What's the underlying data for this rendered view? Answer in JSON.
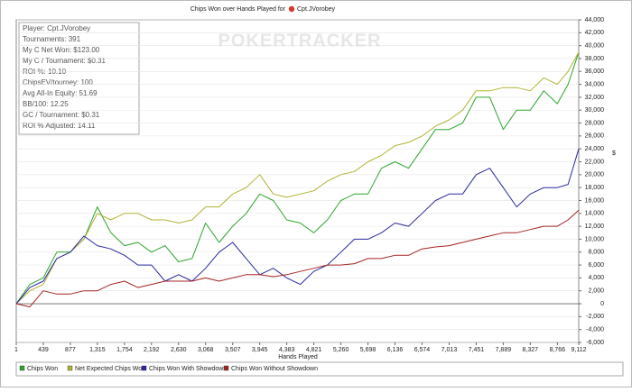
{
  "chart_data": {
    "type": "line",
    "title": "Chips Won over Hands Played for",
    "title_player": "Cpt.JVorobey",
    "watermark": "POKERTRACKER",
    "x_label": "Hands Played",
    "y_label": "$",
    "stats": [
      "Player: Cpt.JVorobey",
      "Tournaments: 391",
      "My C Net Won: $123.00",
      "My C / Tournament: $0.31",
      "ROI %: 10.10",
      "ChipsEV/tourney: 100",
      "Avg All-In Equity: 51.69",
      "BB/100: 12.25",
      "GC / Tournament: $0.31",
      "ROI % Adjusted: 14.11"
    ],
    "grid": true,
    "xlim": [
      1,
      9112
    ],
    "xticks": [
      1,
      439,
      877,
      {
        "value": 1315,
        "label": "1,315"
      },
      {
        "value": 1754,
        "label": "1,754"
      },
      {
        "value": 2192,
        "label": "2,192"
      },
      {
        "value": 2630,
        "label": "2,630"
      },
      {
        "value": 3068,
        "label": "3,068"
      },
      {
        "value": 3507,
        "label": "3,507"
      },
      {
        "value": 3945,
        "label": "3,945"
      },
      {
        "value": 4383,
        "label": "4,383"
      },
      {
        "value": 4821,
        "label": "4,821"
      },
      {
        "value": 5260,
        "label": "5,260"
      },
      {
        "value": 5698,
        "label": "5,698"
      },
      {
        "value": 6136,
        "label": "6,136"
      },
      {
        "value": 6574,
        "label": "6,574"
      },
      {
        "value": 7013,
        "label": "7,013"
      },
      {
        "value": 7451,
        "label": "7,451"
      },
      {
        "value": 7889,
        "label": "7,889"
      },
      {
        "value": 8327,
        "label": "8,327"
      },
      {
        "value": 8766,
        "label": "8,766"
      },
      {
        "value": 9112,
        "label": "9,112"
      }
    ],
    "ylim": [
      -6000,
      44000
    ],
    "yticks": [
      {
        "value": -6000,
        "label": "-6,000"
      },
      {
        "value": -4000,
        "label": "-4,000"
      },
      {
        "value": -2000,
        "label": "-2,000"
      },
      0,
      {
        "value": 2000,
        "label": "2,000"
      },
      {
        "value": 4000,
        "label": "4,000"
      },
      {
        "value": 6000,
        "label": "6,000"
      },
      {
        "value": 8000,
        "label": "8,000"
      },
      {
        "value": 10000,
        "label": "10,000"
      },
      {
        "value": 12000,
        "label": "12,000"
      },
      {
        "value": 14000,
        "label": "14,000"
      },
      {
        "value": 16000,
        "label": "16,000"
      },
      {
        "value": 18000,
        "label": "18,000"
      },
      {
        "value": 20000,
        "label": "20,000"
      },
      {
        "value": 22000,
        "label": "22,000"
      },
      {
        "value": 24000,
        "label": "24,000"
      },
      {
        "value": 26000,
        "label": "26,000"
      },
      {
        "value": 28000,
        "label": "28,000"
      },
      {
        "value": 30000,
        "label": "30,000"
      },
      {
        "value": 32000,
        "label": "32,000"
      },
      {
        "value": 34000,
        "label": "34,000"
      },
      {
        "value": 36000,
        "label": "36,000"
      },
      {
        "value": 38000,
        "label": "38,000"
      },
      {
        "value": 40000,
        "label": "40,000"
      },
      {
        "value": 42000,
        "label": "42,000"
      },
      {
        "value": 44000,
        "label": "44,000"
      }
    ],
    "x": [
      1,
      220,
      439,
      658,
      877,
      1096,
      1315,
      1534,
      1754,
      1973,
      2192,
      2411,
      2630,
      2849,
      3068,
      3287,
      3507,
      3726,
      3945,
      4164,
      4383,
      4602,
      4821,
      5040,
      5260,
      5479,
      5698,
      5917,
      6136,
      6355,
      6574,
      6793,
      7013,
      7232,
      7451,
      7670,
      7889,
      8108,
      8327,
      8546,
      8766,
      8939,
      9112
    ],
    "series": [
      {
        "name": "Chips Won",
        "color": "#2aa52a",
        "values": [
          0,
          3000,
          4000,
          8000,
          8000,
          10000,
          15000,
          11000,
          9000,
          9500,
          8000,
          9000,
          6500,
          7000,
          12500,
          9500,
          12000,
          14000,
          17000,
          16000,
          13000,
          12500,
          11000,
          13000,
          16000,
          17000,
          17000,
          21000,
          22000,
          21000,
          24000,
          27000,
          27000,
          28000,
          32000,
          32000,
          27000,
          30000,
          30000,
          33000,
          31000,
          34000,
          39000
        ]
      },
      {
        "name": "Net Expected Chips Won",
        "color": "#b2b232",
        "values": [
          0,
          2000,
          3000,
          7000,
          8000,
          10000,
          14000,
          13000,
          14000,
          14000,
          13000,
          13000,
          12500,
          13000,
          15000,
          15000,
          17000,
          18000,
          20000,
          17000,
          16500,
          17000,
          17500,
          19000,
          20000,
          20500,
          22000,
          23000,
          24500,
          25000,
          26000,
          27500,
          28500,
          30000,
          33000,
          33000,
          33500,
          33500,
          33000,
          35000,
          34000,
          36000,
          39000
        ]
      },
      {
        "name": "Chips Won With Showdown",
        "color": "#2828a0",
        "values": [
          0,
          2500,
          3500,
          7000,
          8000,
          10500,
          9000,
          8500,
          7500,
          6000,
          6000,
          3500,
          4500,
          3500,
          5500,
          8000,
          9500,
          7000,
          4500,
          5500,
          4000,
          3000,
          5000,
          6000,
          8000,
          10000,
          10000,
          11000,
          12500,
          12000,
          14000,
          16000,
          17000,
          17000,
          20000,
          21000,
          18000,
          15000,
          17000,
          18000,
          18000,
          18500,
          24000
        ]
      },
      {
        "name": "Chips Won Without Showdown",
        "color": "#a52222",
        "values": [
          0,
          -500,
          2000,
          1500,
          1500,
          2000,
          2000,
          3000,
          3500,
          2500,
          3000,
          3500,
          3500,
          3500,
          4000,
          3500,
          4000,
          4500,
          4500,
          4200,
          4500,
          5000,
          5500,
          6000,
          6000,
          6200,
          7000,
          7000,
          7500,
          7500,
          8500,
          8800,
          9000,
          9500,
          10000,
          10500,
          11000,
          11000,
          11500,
          12000,
          12000,
          13000,
          14500
        ]
      }
    ]
  }
}
